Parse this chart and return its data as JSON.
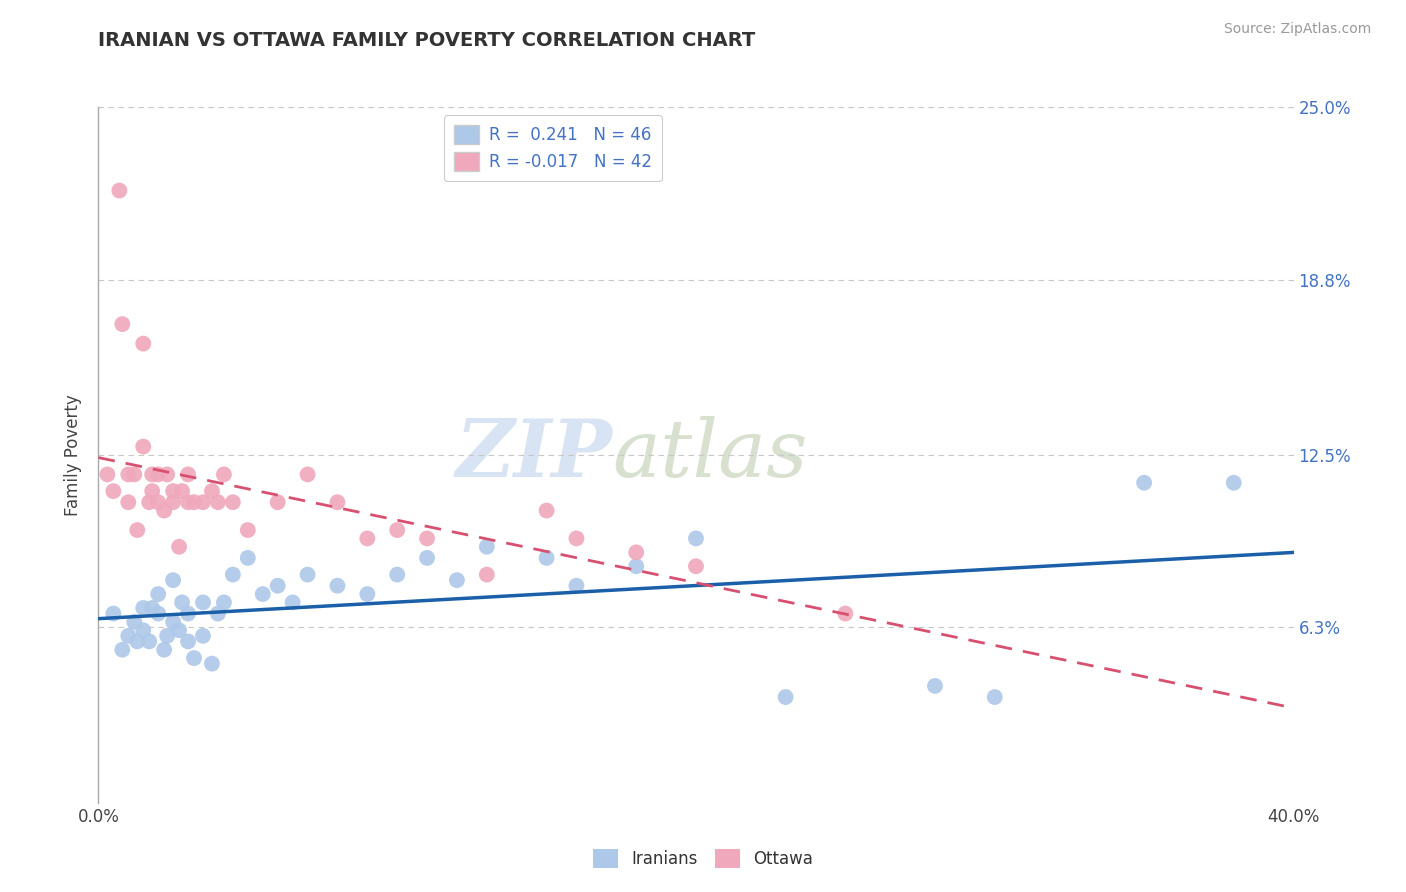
{
  "title": "IRANIAN VS OTTAWA FAMILY POVERTY CORRELATION CHART",
  "source": "Source: ZipAtlas.com",
  "ylabel": "Family Poverty",
  "xlim": [
    0.0,
    0.4
  ],
  "ylim": [
    0.0,
    0.25
  ],
  "ytick_positions": [
    0.063,
    0.125,
    0.188,
    0.25
  ],
  "ytick_labels": [
    "6.3%",
    "12.5%",
    "18.8%",
    "25.0%"
  ],
  "iranians_R": "0.241",
  "iranians_N": "46",
  "ottawa_R": "-0.017",
  "ottawa_N": "42",
  "iranians_color": "#adc8e8",
  "ottawa_color": "#f0a8bc",
  "iranians_line_color": "#1a5fa8",
  "ottawa_line_color": "#d85070",
  "background_color": "#ffffff",
  "watermark_zip": "ZIP",
  "watermark_atlas": "atlas",
  "iranians_scatter_x": [
    0.005,
    0.008,
    0.01,
    0.012,
    0.013,
    0.015,
    0.015,
    0.017,
    0.018,
    0.02,
    0.02,
    0.022,
    0.023,
    0.025,
    0.025,
    0.027,
    0.028,
    0.03,
    0.03,
    0.032,
    0.035,
    0.035,
    0.038,
    0.04,
    0.042,
    0.045,
    0.05,
    0.055,
    0.06,
    0.065,
    0.07,
    0.08,
    0.09,
    0.1,
    0.11,
    0.12,
    0.13,
    0.15,
    0.16,
    0.18,
    0.2,
    0.23,
    0.28,
    0.3,
    0.35,
    0.38
  ],
  "iranians_scatter_y": [
    0.068,
    0.055,
    0.06,
    0.065,
    0.058,
    0.062,
    0.07,
    0.058,
    0.07,
    0.068,
    0.075,
    0.055,
    0.06,
    0.065,
    0.08,
    0.062,
    0.072,
    0.058,
    0.068,
    0.052,
    0.06,
    0.072,
    0.05,
    0.068,
    0.072,
    0.082,
    0.088,
    0.075,
    0.078,
    0.072,
    0.082,
    0.078,
    0.075,
    0.082,
    0.088,
    0.08,
    0.092,
    0.088,
    0.078,
    0.085,
    0.095,
    0.038,
    0.042,
    0.038,
    0.115,
    0.115
  ],
  "ottawa_scatter_x": [
    0.003,
    0.005,
    0.007,
    0.008,
    0.01,
    0.01,
    0.012,
    0.013,
    0.015,
    0.015,
    0.017,
    0.018,
    0.018,
    0.02,
    0.02,
    0.022,
    0.023,
    0.025,
    0.025,
    0.027,
    0.028,
    0.03,
    0.03,
    0.032,
    0.035,
    0.038,
    0.04,
    0.042,
    0.045,
    0.05,
    0.06,
    0.07,
    0.08,
    0.09,
    0.1,
    0.11,
    0.13,
    0.15,
    0.16,
    0.18,
    0.2,
    0.25
  ],
  "ottawa_scatter_y": [
    0.118,
    0.112,
    0.22,
    0.172,
    0.118,
    0.108,
    0.118,
    0.098,
    0.165,
    0.128,
    0.108,
    0.112,
    0.118,
    0.118,
    0.108,
    0.105,
    0.118,
    0.112,
    0.108,
    0.092,
    0.112,
    0.118,
    0.108,
    0.108,
    0.108,
    0.112,
    0.108,
    0.118,
    0.108,
    0.098,
    0.108,
    0.118,
    0.108,
    0.095,
    0.098,
    0.095,
    0.082,
    0.105,
    0.095,
    0.09,
    0.085,
    0.068
  ]
}
